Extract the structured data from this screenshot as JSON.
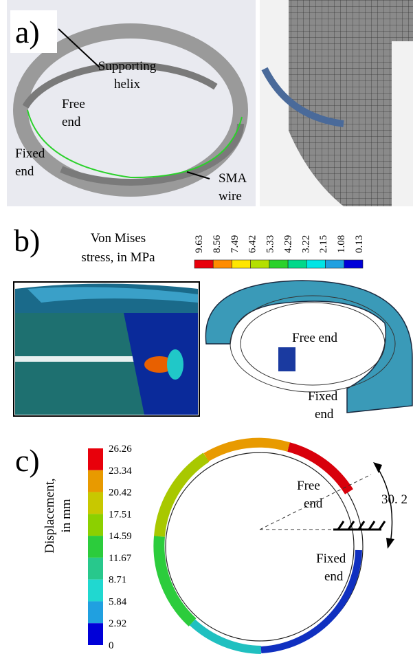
{
  "panel_a": {
    "label": "a)",
    "supporting_helix": [
      "Supporting",
      "helix"
    ],
    "free_end": [
      "Free",
      "end"
    ],
    "fixed_end": [
      "Fixed",
      "end"
    ],
    "sma_wire": [
      "SMA",
      "wire"
    ]
  },
  "panel_b": {
    "label": "b)",
    "colorbar_title": [
      "Von Mises",
      "stress, in MPa"
    ],
    "colorbar_labels": [
      "9.63",
      "8.56",
      "7.49",
      "6.42",
      "5.33",
      "4.29",
      "3.22",
      "2.15",
      "1.08",
      "0.13"
    ],
    "colorbar_colors": [
      "#e8000b",
      "#ff8c00",
      "#ffe600",
      "#b4e000",
      "#2bd12b",
      "#00d88a",
      "#00e5e5",
      "#1fa0e0",
      "#0000d8"
    ],
    "free_end": "Free end",
    "fixed_end": [
      "Fixed",
      "end"
    ]
  },
  "panel_c": {
    "label": "c)",
    "colorbar_title": [
      "Displacement,",
      "in mm"
    ],
    "colorbar_labels": [
      "26.26",
      "23.34",
      "20.42",
      "17.51",
      "14.59",
      "11.67",
      "8.71",
      "5.84",
      "2.92",
      "0"
    ],
    "colorbar_colors": [
      "#e8000b",
      "#e89a00",
      "#c8c800",
      "#8cd000",
      "#2ccc3c",
      "#28c88c",
      "#20d8d0",
      "#20a0e0",
      "#0000d8"
    ],
    "free_end": [
      "Free",
      "end"
    ],
    "fixed_end": [
      "Fixed",
      "end"
    ],
    "angle": "30. 2"
  }
}
